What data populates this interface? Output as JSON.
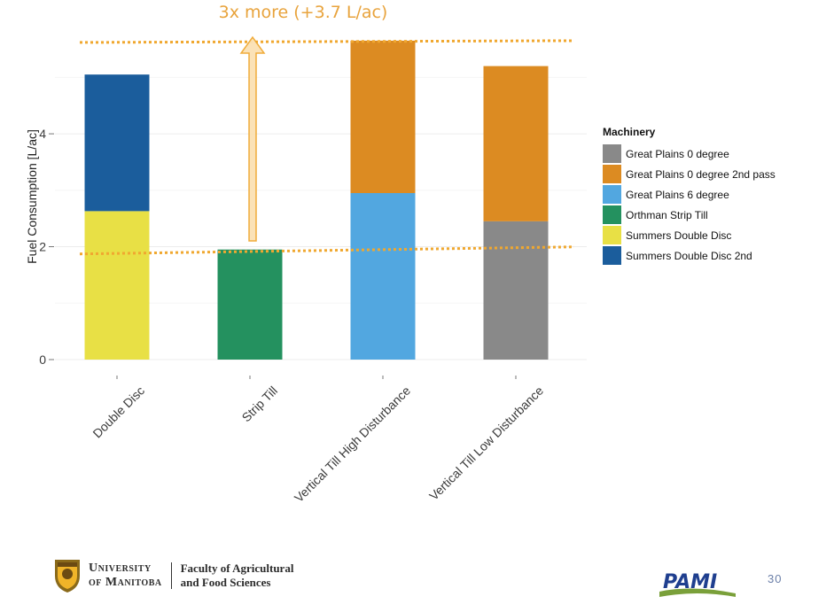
{
  "chart_data": {
    "type": "bar",
    "stacked": true,
    "categories": [
      "Double Disc",
      "Strip Till",
      "Vertical Till High Disturbance",
      "Vertical Till Low Disturbance"
    ],
    "ylabel": "Fuel Consumption [L/ac]",
    "xlabel": "",
    "yticks": [
      0,
      2,
      4
    ],
    "ylim": [
      0,
      5.9
    ],
    "grid": true,
    "legend_title": "Machinery",
    "legend_position": "right",
    "series": [
      {
        "name": "Great Plains 0 degree",
        "color": "#898989",
        "values": [
          0,
          0,
          0,
          2.45
        ]
      },
      {
        "name": "Great Plains 0 degree 2nd pass",
        "color": "#dc8b22",
        "values": [
          0,
          0,
          2.7,
          2.75
        ]
      },
      {
        "name": "Great Plains 6 degree",
        "color": "#52a7e0",
        "values": [
          0,
          0,
          2.95,
          0
        ]
      },
      {
        "name": "Orthman Strip Till",
        "color": "#24915f",
        "values": [
          0,
          1.95,
          0,
          0
        ]
      },
      {
        "name": "Summers Double Disc",
        "color": "#e8e045",
        "values": [
          2.63,
          0,
          0,
          0
        ]
      },
      {
        "name": "Summers Double Disc 2nd",
        "color": "#1b5d9c",
        "values": [
          2.42,
          0,
          0,
          0
        ]
      }
    ],
    "stack_order": [
      "Summers Double Disc",
      "Orthman Strip Till",
      "Great Plains 6 degree",
      "Great Plains 0 degree",
      "Great Plains 0 degree 2nd pass",
      "Summers Double Disc 2nd"
    ],
    "annotation": {
      "text": "3x more (+3.7 L/ac)",
      "color": "#f0a830",
      "upper_line_y": 5.65,
      "lower_line_y": 1.95
    }
  },
  "footer": {
    "university_line1": "University",
    "university_line2": "of Manitoba",
    "faculty_line1": "Faculty of Agricultural",
    "faculty_line2": "and Food Sciences",
    "partner_logo": "PAMI",
    "page_number": "30"
  }
}
